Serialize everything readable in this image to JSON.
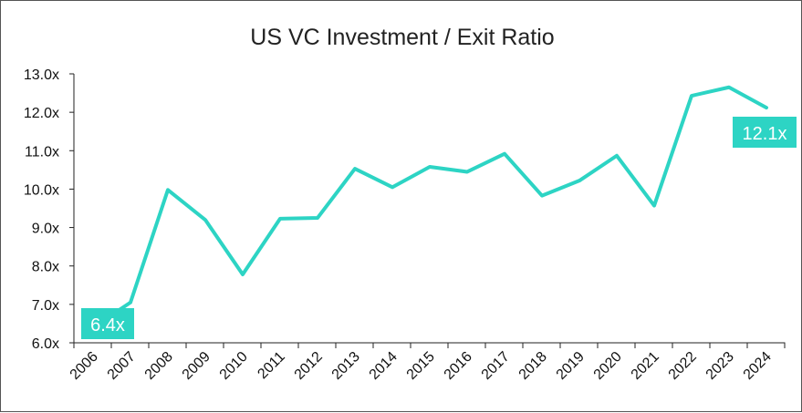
{
  "colors": {
    "line": "#2dd4c4",
    "axis": "#222222",
    "callout_bg": "#2dd4c4",
    "callout_text": "#ffffff"
  },
  "chart_data": {
    "type": "line",
    "title": "US VC Investment  / Exit Ratio",
    "xlabel": "",
    "ylabel": "",
    "ylim": [
      6.0,
      13.0
    ],
    "yticks": [
      "6.0x",
      "7.0x",
      "8.0x",
      "9.0x",
      "10.0x",
      "11.0x",
      "12.0x",
      "13.0x"
    ],
    "categories": [
      "2006",
      "2007",
      "2008",
      "2009",
      "2010",
      "2011",
      "2012",
      "2013",
      "2014",
      "2015",
      "2016",
      "2017",
      "2018",
      "2019",
      "2020",
      "2021",
      "2022",
      "2023",
      "2024"
    ],
    "series": [
      {
        "name": "US VC Investment / Exit Ratio",
        "values": [
          6.4,
          7.05,
          9.98,
          9.2,
          7.78,
          9.23,
          9.25,
          10.53,
          10.05,
          10.58,
          10.45,
          10.92,
          9.83,
          10.22,
          10.87,
          9.57,
          12.43,
          12.65,
          12.12
        ]
      }
    ],
    "annotations": [
      {
        "label": "6.4x",
        "category": "2006"
      },
      {
        "label": "12.1x",
        "category": "2024"
      }
    ],
    "grid": false,
    "legend": "none"
  }
}
